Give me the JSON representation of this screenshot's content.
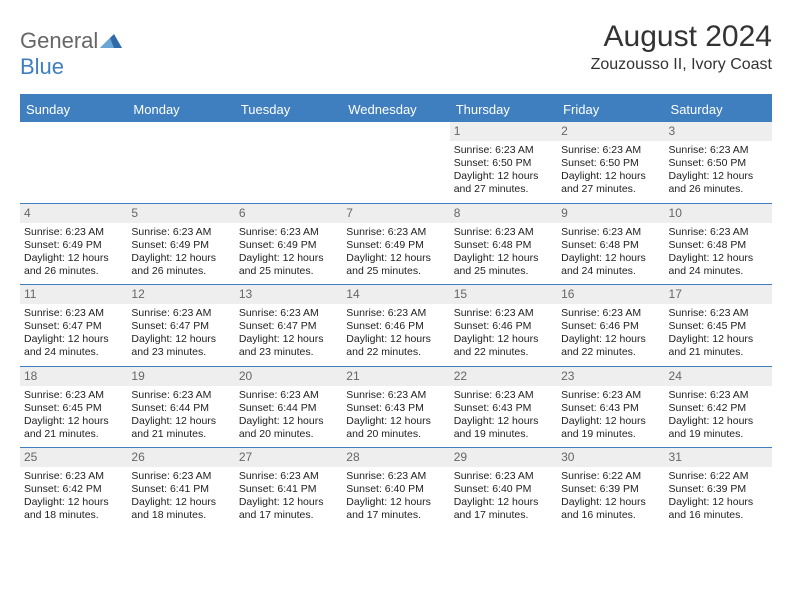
{
  "brand": {
    "general": "General",
    "blue": "Blue"
  },
  "title": "August 2024",
  "location": "Zouzousso II, Ivory Coast",
  "colors": {
    "accent": "#3f7fbf",
    "daynum_bg": "#eeeeee",
    "text": "#222222",
    "header_text": "#333333"
  },
  "days_of_week": [
    "Sunday",
    "Monday",
    "Tuesday",
    "Wednesday",
    "Thursday",
    "Friday",
    "Saturday"
  ],
  "weeks": [
    [
      {
        "blank": true
      },
      {
        "blank": true
      },
      {
        "blank": true
      },
      {
        "blank": true
      },
      {
        "d": "1",
        "sr": "Sunrise: 6:23 AM",
        "ss": "Sunset: 6:50 PM",
        "dl": "Daylight: 12 hours and 27 minutes."
      },
      {
        "d": "2",
        "sr": "Sunrise: 6:23 AM",
        "ss": "Sunset: 6:50 PM",
        "dl": "Daylight: 12 hours and 27 minutes."
      },
      {
        "d": "3",
        "sr": "Sunrise: 6:23 AM",
        "ss": "Sunset: 6:50 PM",
        "dl": "Daylight: 12 hours and 26 minutes."
      }
    ],
    [
      {
        "d": "4",
        "sr": "Sunrise: 6:23 AM",
        "ss": "Sunset: 6:49 PM",
        "dl": "Daylight: 12 hours and 26 minutes."
      },
      {
        "d": "5",
        "sr": "Sunrise: 6:23 AM",
        "ss": "Sunset: 6:49 PM",
        "dl": "Daylight: 12 hours and 26 minutes."
      },
      {
        "d": "6",
        "sr": "Sunrise: 6:23 AM",
        "ss": "Sunset: 6:49 PM",
        "dl": "Daylight: 12 hours and 25 minutes."
      },
      {
        "d": "7",
        "sr": "Sunrise: 6:23 AM",
        "ss": "Sunset: 6:49 PM",
        "dl": "Daylight: 12 hours and 25 minutes."
      },
      {
        "d": "8",
        "sr": "Sunrise: 6:23 AM",
        "ss": "Sunset: 6:48 PM",
        "dl": "Daylight: 12 hours and 25 minutes."
      },
      {
        "d": "9",
        "sr": "Sunrise: 6:23 AM",
        "ss": "Sunset: 6:48 PM",
        "dl": "Daylight: 12 hours and 24 minutes."
      },
      {
        "d": "10",
        "sr": "Sunrise: 6:23 AM",
        "ss": "Sunset: 6:48 PM",
        "dl": "Daylight: 12 hours and 24 minutes."
      }
    ],
    [
      {
        "d": "11",
        "sr": "Sunrise: 6:23 AM",
        "ss": "Sunset: 6:47 PM",
        "dl": "Daylight: 12 hours and 24 minutes."
      },
      {
        "d": "12",
        "sr": "Sunrise: 6:23 AM",
        "ss": "Sunset: 6:47 PM",
        "dl": "Daylight: 12 hours and 23 minutes."
      },
      {
        "d": "13",
        "sr": "Sunrise: 6:23 AM",
        "ss": "Sunset: 6:47 PM",
        "dl": "Daylight: 12 hours and 23 minutes."
      },
      {
        "d": "14",
        "sr": "Sunrise: 6:23 AM",
        "ss": "Sunset: 6:46 PM",
        "dl": "Daylight: 12 hours and 22 minutes."
      },
      {
        "d": "15",
        "sr": "Sunrise: 6:23 AM",
        "ss": "Sunset: 6:46 PM",
        "dl": "Daylight: 12 hours and 22 minutes."
      },
      {
        "d": "16",
        "sr": "Sunrise: 6:23 AM",
        "ss": "Sunset: 6:46 PM",
        "dl": "Daylight: 12 hours and 22 minutes."
      },
      {
        "d": "17",
        "sr": "Sunrise: 6:23 AM",
        "ss": "Sunset: 6:45 PM",
        "dl": "Daylight: 12 hours and 21 minutes."
      }
    ],
    [
      {
        "d": "18",
        "sr": "Sunrise: 6:23 AM",
        "ss": "Sunset: 6:45 PM",
        "dl": "Daylight: 12 hours and 21 minutes."
      },
      {
        "d": "19",
        "sr": "Sunrise: 6:23 AM",
        "ss": "Sunset: 6:44 PM",
        "dl": "Daylight: 12 hours and 21 minutes."
      },
      {
        "d": "20",
        "sr": "Sunrise: 6:23 AM",
        "ss": "Sunset: 6:44 PM",
        "dl": "Daylight: 12 hours and 20 minutes."
      },
      {
        "d": "21",
        "sr": "Sunrise: 6:23 AM",
        "ss": "Sunset: 6:43 PM",
        "dl": "Daylight: 12 hours and 20 minutes."
      },
      {
        "d": "22",
        "sr": "Sunrise: 6:23 AM",
        "ss": "Sunset: 6:43 PM",
        "dl": "Daylight: 12 hours and 19 minutes."
      },
      {
        "d": "23",
        "sr": "Sunrise: 6:23 AM",
        "ss": "Sunset: 6:43 PM",
        "dl": "Daylight: 12 hours and 19 minutes."
      },
      {
        "d": "24",
        "sr": "Sunrise: 6:23 AM",
        "ss": "Sunset: 6:42 PM",
        "dl": "Daylight: 12 hours and 19 minutes."
      }
    ],
    [
      {
        "d": "25",
        "sr": "Sunrise: 6:23 AM",
        "ss": "Sunset: 6:42 PM",
        "dl": "Daylight: 12 hours and 18 minutes."
      },
      {
        "d": "26",
        "sr": "Sunrise: 6:23 AM",
        "ss": "Sunset: 6:41 PM",
        "dl": "Daylight: 12 hours and 18 minutes."
      },
      {
        "d": "27",
        "sr": "Sunrise: 6:23 AM",
        "ss": "Sunset: 6:41 PM",
        "dl": "Daylight: 12 hours and 17 minutes."
      },
      {
        "d": "28",
        "sr": "Sunrise: 6:23 AM",
        "ss": "Sunset: 6:40 PM",
        "dl": "Daylight: 12 hours and 17 minutes."
      },
      {
        "d": "29",
        "sr": "Sunrise: 6:23 AM",
        "ss": "Sunset: 6:40 PM",
        "dl": "Daylight: 12 hours and 17 minutes."
      },
      {
        "d": "30",
        "sr": "Sunrise: 6:22 AM",
        "ss": "Sunset: 6:39 PM",
        "dl": "Daylight: 12 hours and 16 minutes."
      },
      {
        "d": "31",
        "sr": "Sunrise: 6:22 AM",
        "ss": "Sunset: 6:39 PM",
        "dl": "Daylight: 12 hours and 16 minutes."
      }
    ]
  ]
}
